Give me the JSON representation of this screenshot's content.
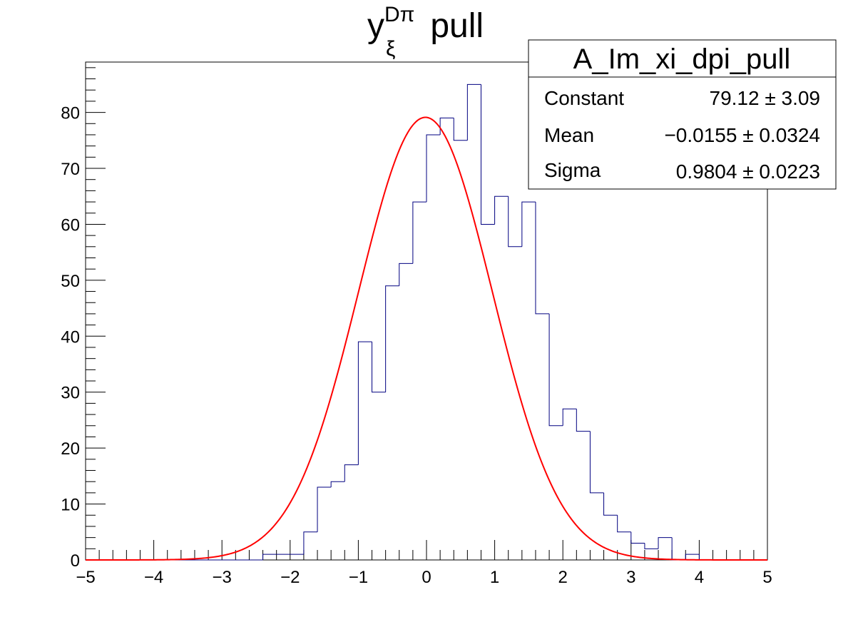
{
  "chart_data": {
    "type": "histogram",
    "title": {
      "base": "y",
      "superscript": "Dπ",
      "subscript": "ξ",
      "suffix": " pull"
    },
    "xlabel": "",
    "ylabel": "",
    "xlim": [
      -5,
      5
    ],
    "ylim": [
      0,
      89
    ],
    "bin_edges_start": -5,
    "bin_width": 0.2,
    "counts": [
      0,
      0,
      0,
      0,
      0,
      0,
      0,
      0,
      0,
      0,
      0,
      0,
      0,
      1,
      1,
      1,
      5,
      13,
      14,
      17,
      39,
      30,
      49,
      53,
      64,
      76,
      79,
      75,
      85,
      60,
      65,
      56,
      64,
      44,
      24,
      27,
      23,
      12,
      8,
      5,
      3,
      2,
      4,
      0,
      1,
      0,
      0,
      0,
      0,
      0
    ],
    "fit": {
      "function": "gaus",
      "constant": 79.12,
      "mean": -0.0155,
      "sigma": 0.9804
    },
    "x_ticks": [
      {
        "value": -5,
        "label": "−5"
      },
      {
        "value": -4,
        "label": "−4"
      },
      {
        "value": -3,
        "label": "−3"
      },
      {
        "value": -2,
        "label": "−2"
      },
      {
        "value": -1,
        "label": "−1"
      },
      {
        "value": 0,
        "label": "0"
      },
      {
        "value": 1,
        "label": "1"
      },
      {
        "value": 2,
        "label": "2"
      },
      {
        "value": 3,
        "label": "3"
      },
      {
        "value": 4,
        "label": "4"
      },
      {
        "value": 5,
        "label": "5"
      }
    ],
    "y_ticks": [
      {
        "value": 0,
        "label": "0"
      },
      {
        "value": 10,
        "label": "10"
      },
      {
        "value": 20,
        "label": "20"
      },
      {
        "value": 30,
        "label": "30"
      },
      {
        "value": 40,
        "label": "40"
      },
      {
        "value": 50,
        "label": "50"
      },
      {
        "value": 60,
        "label": "60"
      },
      {
        "value": 70,
        "label": "70"
      },
      {
        "value": 80,
        "label": "80"
      }
    ],
    "grid": false,
    "legend_position": "top-right",
    "colors": {
      "histogram": "#000080",
      "fit": "#ff0000",
      "axis": "#000000"
    }
  },
  "stats_box": {
    "name": "A_Im_xi_dpi_pull",
    "rows": [
      {
        "label": "Constant",
        "value": "79.12 ± 3.09"
      },
      {
        "label": "Mean",
        "value": "−0.0155 ± 0.0324"
      },
      {
        "label": "Sigma",
        "value": "0.9804 ± 0.0223"
      }
    ]
  }
}
